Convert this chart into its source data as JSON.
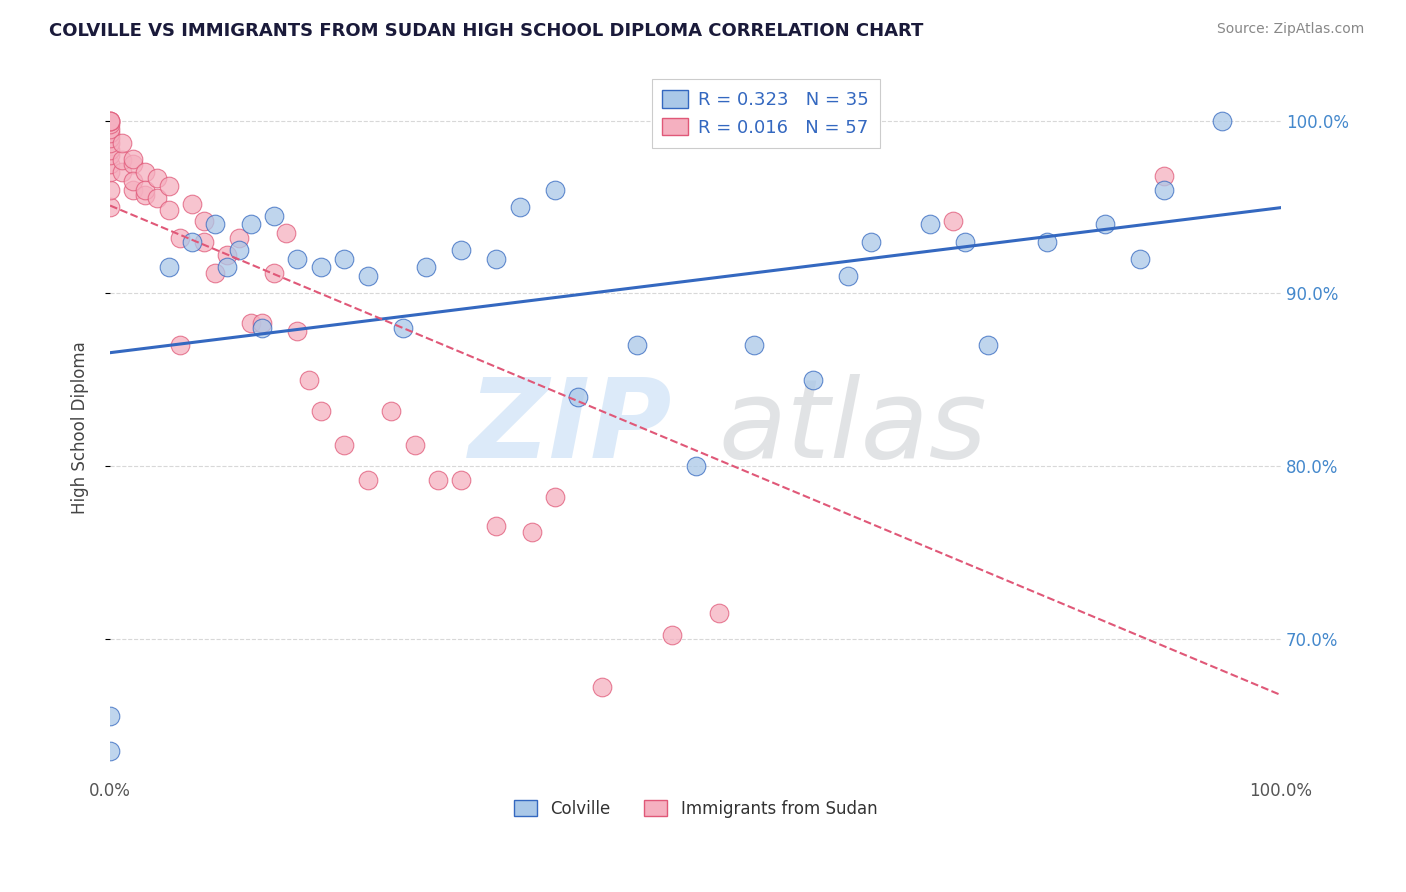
{
  "title": "COLVILLE VS IMMIGRANTS FROM SUDAN HIGH SCHOOL DIPLOMA CORRELATION CHART",
  "source": "Source: ZipAtlas.com",
  "ylabel": "High School Diploma",
  "xmin": 0.0,
  "xmax": 1.0,
  "ymin": 0.62,
  "ymax": 1.025,
  "colville_R": 0.323,
  "colville_N": 35,
  "sudan_R": 0.016,
  "sudan_N": 57,
  "colville_color": "#aac8e8",
  "sudan_color": "#f5b0c0",
  "colville_line_color": "#3468c0",
  "sudan_line_color": "#e05878",
  "colville_x": [
    0.0,
    0.0,
    0.05,
    0.07,
    0.09,
    0.1,
    0.11,
    0.12,
    0.13,
    0.14,
    0.16,
    0.18,
    0.2,
    0.22,
    0.25,
    0.27,
    0.3,
    0.33,
    0.35,
    0.38,
    0.4,
    0.45,
    0.5,
    0.55,
    0.6,
    0.63,
    0.65,
    0.7,
    0.73,
    0.75,
    0.8,
    0.85,
    0.88,
    0.9,
    0.95
  ],
  "colville_y": [
    0.635,
    0.655,
    0.915,
    0.93,
    0.94,
    0.915,
    0.925,
    0.94,
    0.88,
    0.945,
    0.92,
    0.915,
    0.92,
    0.91,
    0.88,
    0.915,
    0.925,
    0.92,
    0.95,
    0.96,
    0.84,
    0.87,
    0.8,
    0.87,
    0.85,
    0.91,
    0.93,
    0.94,
    0.93,
    0.87,
    0.93,
    0.94,
    0.92,
    0.96,
    1.0
  ],
  "sudan_x": [
    0.0,
    0.0,
    0.0,
    0.0,
    0.0,
    0.0,
    0.0,
    0.0,
    0.0,
    0.0,
    0.0,
    0.0,
    0.0,
    0.0,
    0.01,
    0.01,
    0.01,
    0.02,
    0.02,
    0.02,
    0.02,
    0.03,
    0.03,
    0.03,
    0.04,
    0.04,
    0.05,
    0.05,
    0.06,
    0.06,
    0.07,
    0.08,
    0.08,
    0.09,
    0.1,
    0.11,
    0.12,
    0.13,
    0.14,
    0.15,
    0.16,
    0.17,
    0.18,
    0.2,
    0.22,
    0.24,
    0.26,
    0.28,
    0.3,
    0.33,
    0.36,
    0.38,
    0.42,
    0.48,
    0.52,
    0.72,
    0.9
  ],
  "sudan_y": [
    0.95,
    0.96,
    0.97,
    0.975,
    0.98,
    0.983,
    0.987,
    0.99,
    0.993,
    0.995,
    0.998,
    1.0,
    1.0,
    1.0,
    0.97,
    0.977,
    0.987,
    0.96,
    0.975,
    0.965,
    0.978,
    0.957,
    0.97,
    0.96,
    0.955,
    0.967,
    0.948,
    0.962,
    0.87,
    0.932,
    0.952,
    0.93,
    0.942,
    0.912,
    0.922,
    0.932,
    0.883,
    0.883,
    0.912,
    0.935,
    0.878,
    0.85,
    0.832,
    0.812,
    0.792,
    0.832,
    0.812,
    0.792,
    0.792,
    0.765,
    0.762,
    0.782,
    0.672,
    0.702,
    0.715,
    0.942,
    0.968
  ],
  "ytick_vals": [
    0.7,
    0.8,
    0.9,
    1.0
  ],
  "ytick_labels": [
    "70.0%",
    "80.0%",
    "90.0%",
    "100.0%"
  ],
  "xtick_vals": [
    0.0,
    0.25,
    0.5,
    0.75,
    1.0
  ],
  "xtick_labels": [
    "0.0%",
    "",
    "",
    "",
    "100.0%"
  ]
}
